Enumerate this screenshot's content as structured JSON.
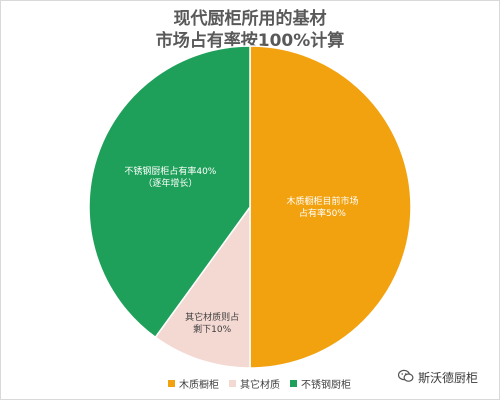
{
  "title": {
    "line1": "现代厨柜所用的基材",
    "line2": "市场占有率按100%计算"
  },
  "chart_data": {
    "type": "pie",
    "categories": [
      "木质橱柜",
      "其它材质",
      "不锈钢厨柜"
    ],
    "values": [
      50,
      10,
      40
    ],
    "colors": [
      "#f2a20f",
      "#f4d8d2",
      "#1fa05a"
    ],
    "data_labels": [
      [
        "木质橱柜目前市场",
        "占有率50%"
      ],
      [
        "其它材质则占",
        "剩下10%"
      ],
      [
        "不锈钢厨柜占有率40%",
        "（逐年增长）"
      ]
    ],
    "legend": [
      "木质橱柜",
      "其它材质",
      "不锈钢厨柜"
    ],
    "legend_position": "bottom",
    "start_angle_deg": 0,
    "direction": "clockwise"
  },
  "watermark": {
    "text": "斯沃德厨柜",
    "icon": "wechat-icon"
  }
}
